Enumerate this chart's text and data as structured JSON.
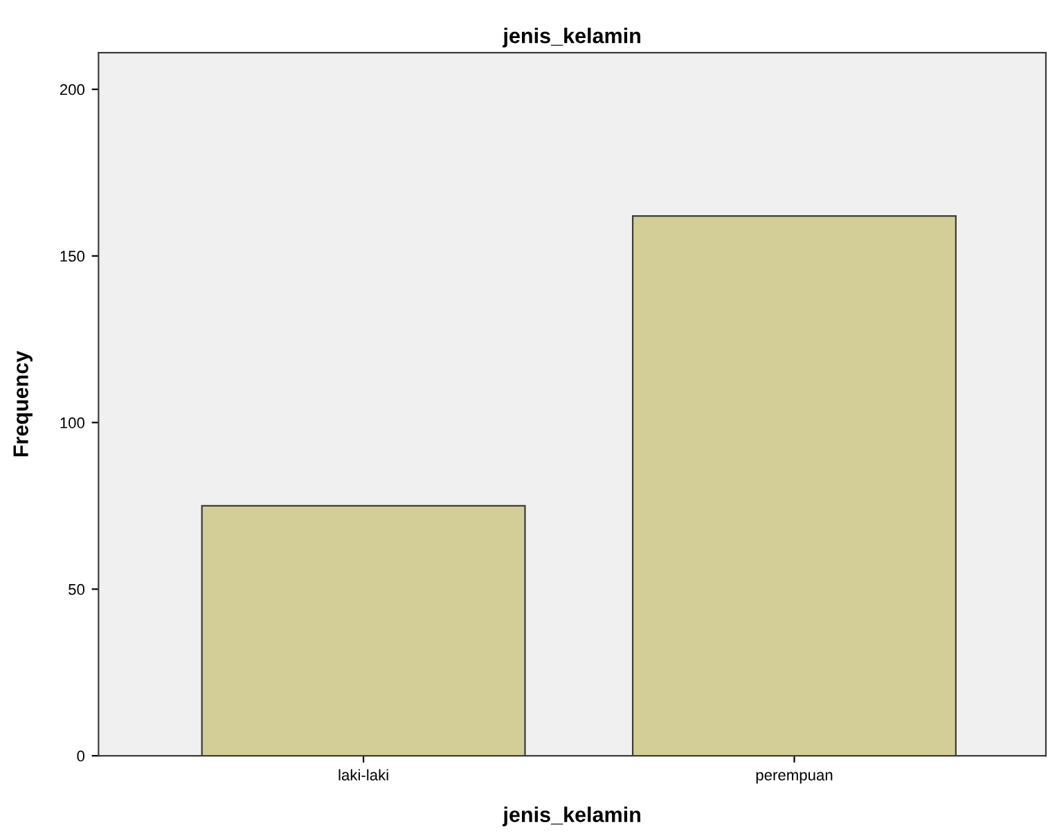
{
  "chart_data": {
    "type": "bar",
    "title": "jenis_kelamin",
    "xlabel": "jenis_kelamin",
    "ylabel": "Frequency",
    "categories": [
      "laki-laki",
      "perempuan"
    ],
    "values": [
      75,
      162
    ],
    "color": "#d3ce97",
    "ylim": [
      0,
      211
    ],
    "yticks": [
      0,
      50,
      100,
      150,
      200
    ],
    "grid": false
  }
}
